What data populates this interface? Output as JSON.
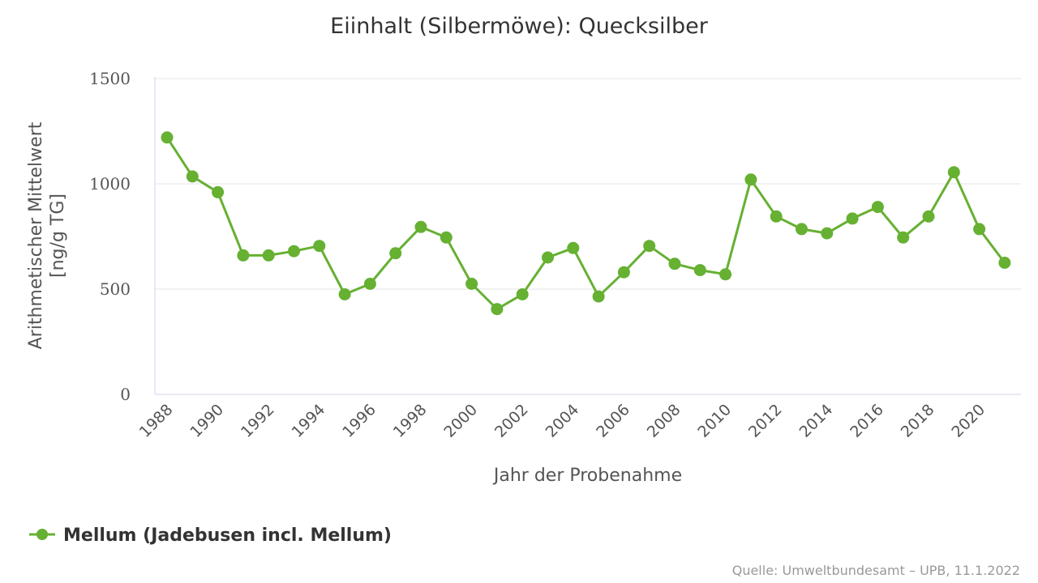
{
  "chart_data": {
    "type": "line",
    "title": "Eiinhalt (Silbermöwe): Quecksilber",
    "xlabel": "Jahr der Probenahme",
    "ylabel_line1": "Arithmetischer Mittelwert",
    "ylabel_line2": "[ng/g TG]",
    "ylim": [
      0,
      1500
    ],
    "yticks": [
      "0",
      "500",
      "1000",
      "1500"
    ],
    "xlim": [
      1988,
      2021
    ],
    "xticks": [
      "1988",
      "1990",
      "1992",
      "1994",
      "1996",
      "1998",
      "2000",
      "2002",
      "2004",
      "2006",
      "2008",
      "2010",
      "2012",
      "2014",
      "2016",
      "2018",
      "2020"
    ],
    "grid": true,
    "legend_position": "bottom-left",
    "series": [
      {
        "name": "Mellum (Jadebusen incl. Mellum)",
        "color": "#66b032",
        "x": [
          1988,
          1989,
          1990,
          1991,
          1992,
          1993,
          1994,
          1995,
          1996,
          1997,
          1998,
          1999,
          2000,
          2001,
          2002,
          2003,
          2004,
          2005,
          2006,
          2007,
          2008,
          2009,
          2010,
          2011,
          2012,
          2013,
          2014,
          2015,
          2016,
          2017,
          2018,
          2019,
          2020,
          2021
        ],
        "y": [
          1220,
          1035,
          960,
          660,
          660,
          680,
          705,
          475,
          525,
          670,
          795,
          745,
          525,
          405,
          475,
          650,
          695,
          465,
          580,
          705,
          620,
          590,
          570,
          1020,
          845,
          785,
          765,
          835,
          890,
          745,
          845,
          1055,
          785,
          625
        ]
      }
    ],
    "source": "Quelle: Umweltbundesamt – UPB, 11.1.2022"
  }
}
